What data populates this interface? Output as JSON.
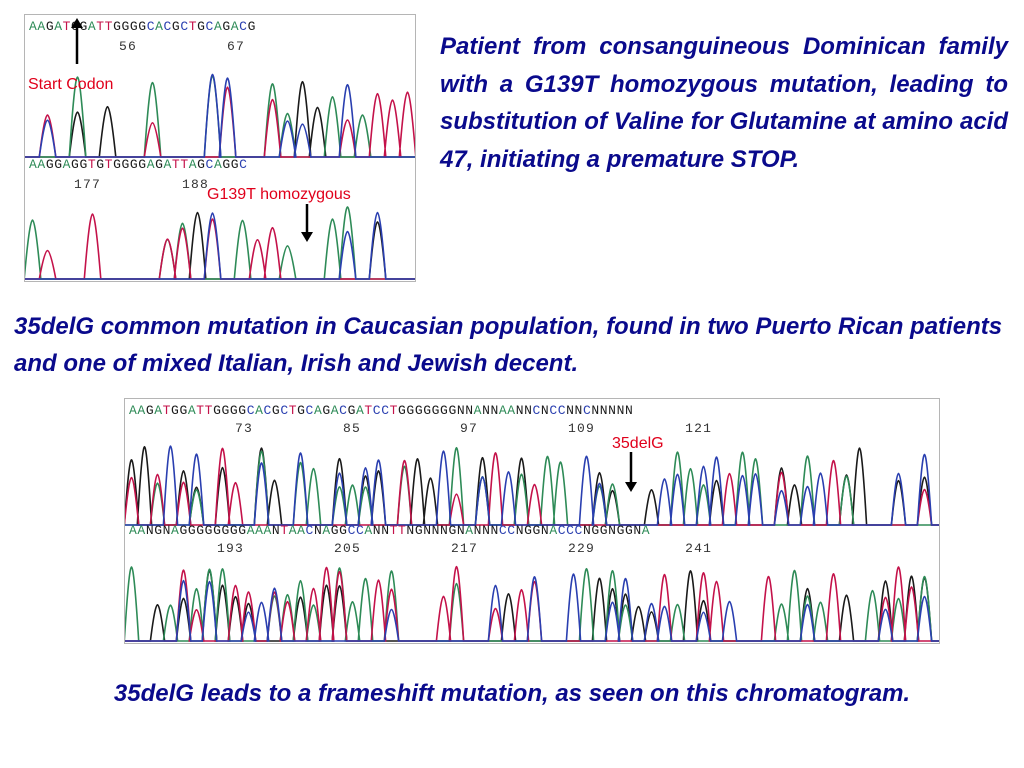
{
  "text": {
    "patient_paragraph": "Patient from consanguineous Dominican family with a G139T homozygous mutation, leading to substitution of Valine for Glutamine at amino acid 47, initiating a premature STOP.",
    "del_paragraph": "35delG common mutation in Caucasian population, found in two Puerto Rican patients and one of mixed Italian, Irish and Jewish decent.",
    "bottom_paragraph": "35delG leads to a frameshift mutation, as seen on this chromatogram."
  },
  "labels": {
    "start_codon": "Start Codon",
    "g139t": "G139T homozygous",
    "del35": "35delG"
  },
  "chromatograms": {
    "top_panel": {
      "row1_sequence": "AAGATGGATTGGGGCACGCTGCAGACG",
      "row1_numbers": "          56          67",
      "row2_sequence": "AAGGAGGTGTGGGGAGATTAGCAGGC",
      "row2_numbers": "     177         188"
    },
    "bottom_panel": {
      "row1_sequence": "AAGATGGATTGGGGCACGCTGCAGACGATCCTGGGGGGGNNANNAANNCNCCNNCNNNNN",
      "row1_numbers": "          73          85           97          109          121",
      "row2_sequence": "AANGNAGGGGGGGGAAANTAACNAGGCCANNTTNGNNNGNANNNCCNGGNACCCNGGNGGNA",
      "row2_numbers": "        193          205          217          229          241"
    }
  },
  "colors": {
    "text_blue": "#0a0a8c",
    "label_red": "#e0001b",
    "trace_black": "#1a1a1a",
    "trace_green": "#2e8b57",
    "trace_red": "#c4124a",
    "trace_blue": "#2a3fb0"
  }
}
